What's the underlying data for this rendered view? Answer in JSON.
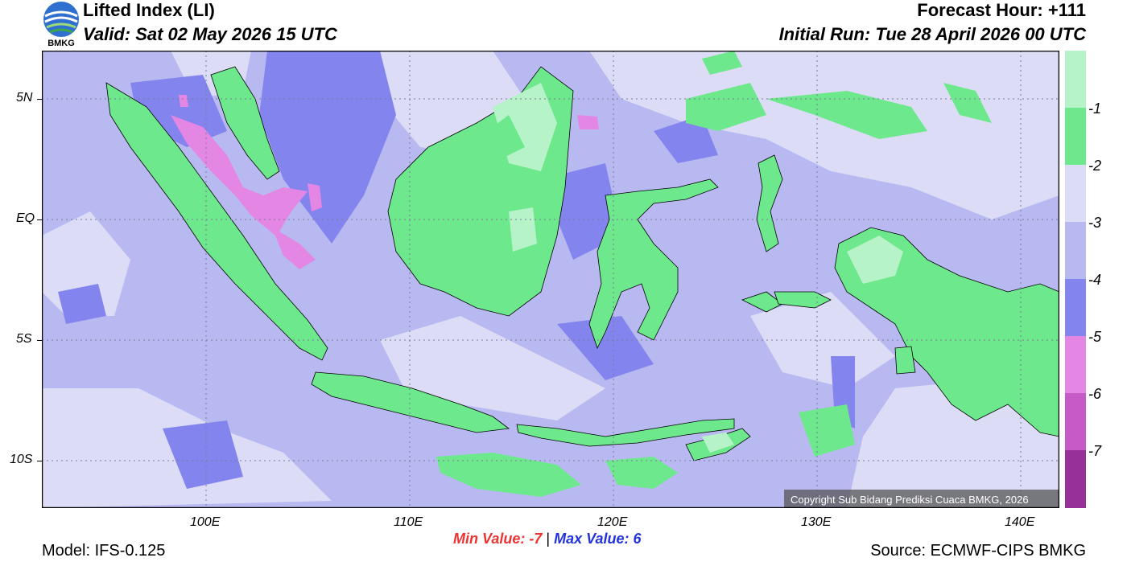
{
  "header": {
    "title": "Lifted Index (LI)",
    "valid": "Valid: Sat 02 May 2026 15 UTC",
    "forecast_hour": "Forecast Hour: +111",
    "initial_run": "Initial Run: Tue 28 April 2026 00 UTC"
  },
  "logo": {
    "text": "BMKG"
  },
  "map": {
    "lat_labels": [
      "5N",
      "EQ",
      "5S",
      "10S"
    ],
    "lon_labels": [
      "100E",
      "110E",
      "120E",
      "130E",
      "140E"
    ],
    "copyright": "Copyright Sub Bidang Prediksi Cuaca BMKG, 2026"
  },
  "colorbar": {
    "labels": [
      "-1",
      "-2",
      "-3",
      "-4",
      "-5",
      "-6",
      "-7"
    ],
    "colors": [
      "#b6f3c8",
      "#6ee88c",
      "#dcdcf6",
      "#b9b9f2",
      "#8484ee",
      "#e486e4",
      "#c65ac6",
      "#98309a"
    ]
  },
  "stats": {
    "min_label": "Min Value:",
    "min_value": "-7",
    "separator": "|",
    "max_label": "Max Value:",
    "max_value": "6"
  },
  "footer": {
    "model": "Model: IFS-0.125",
    "source": "Source: ECMWF-CIPS BMKG"
  }
}
